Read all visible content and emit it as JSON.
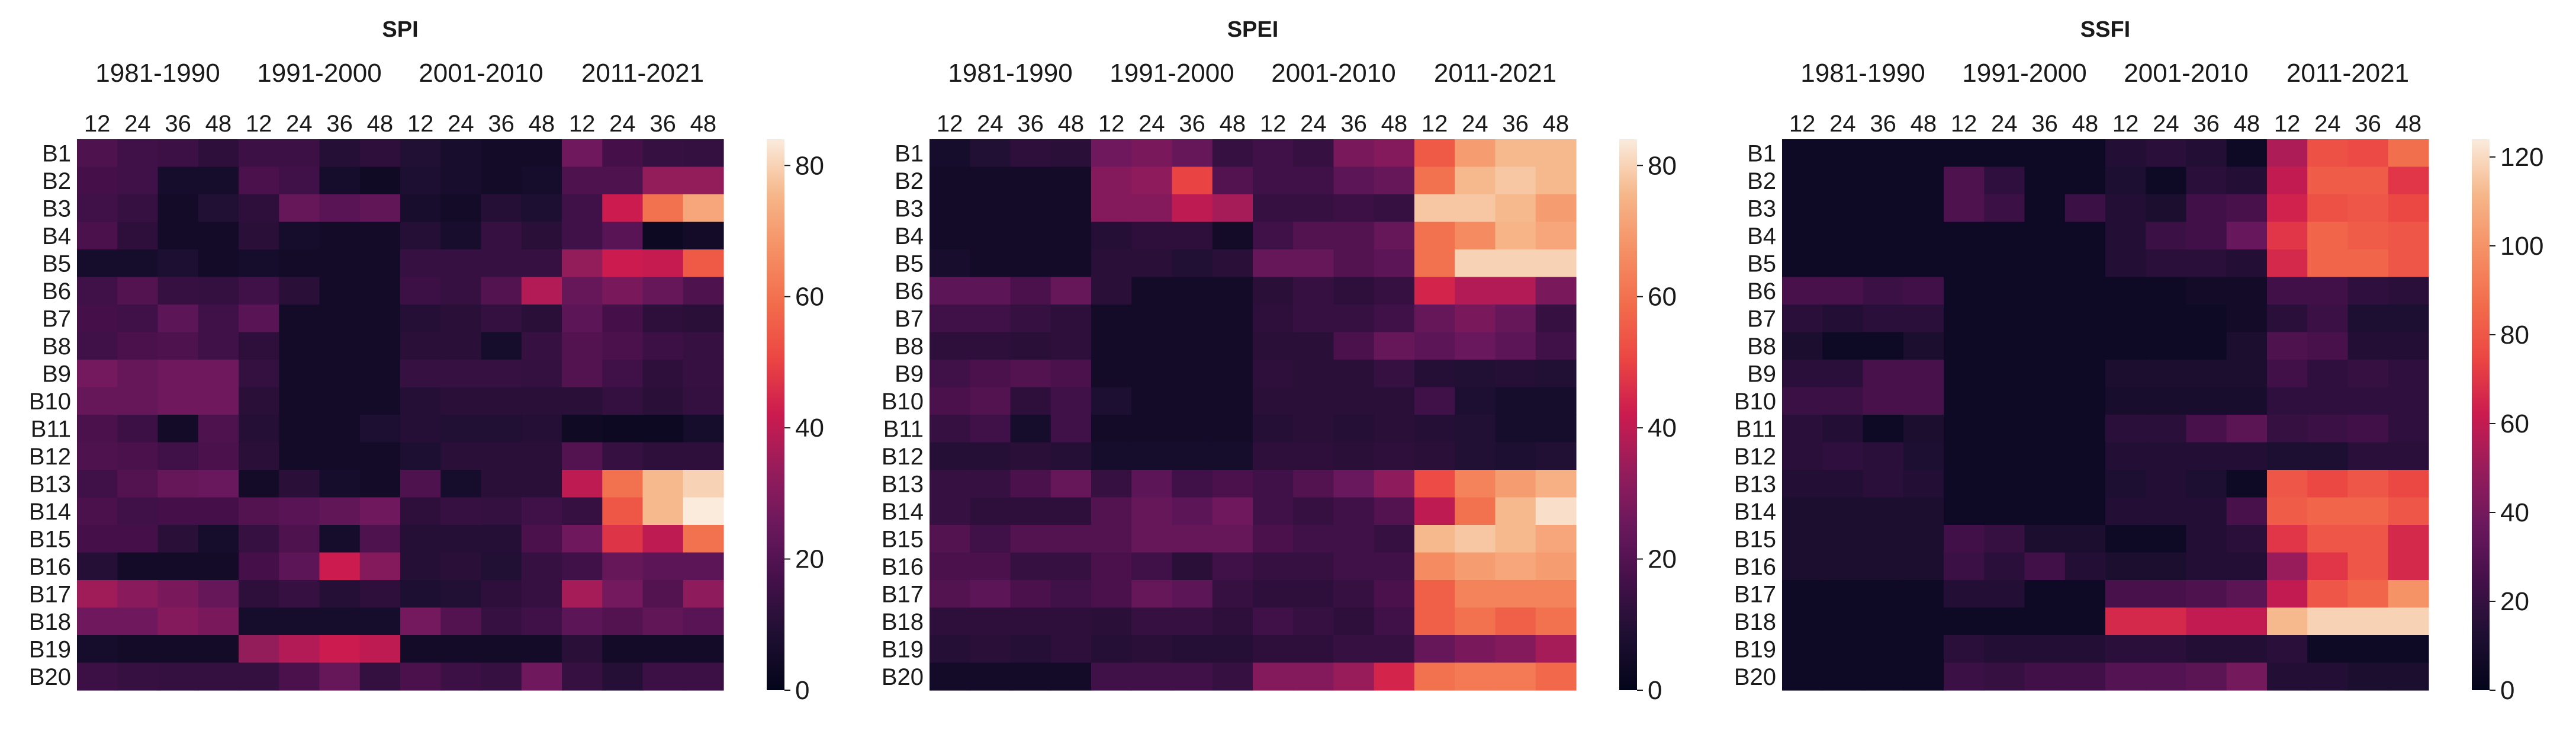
{
  "figure": {
    "background": "#ffffff"
  },
  "chart_data": [
    {
      "type": "heatmap",
      "title": "SPI",
      "periods": [
        "1981-1990",
        "1991-2000",
        "2001-2010",
        "2011-2021"
      ],
      "scales": [
        "12",
        "24",
        "36",
        "48"
      ],
      "rows": [
        "B1",
        "B2",
        "B3",
        "B4",
        "B5",
        "B6",
        "B7",
        "B8",
        "B9",
        "B10",
        "B11",
        "B12",
        "B13",
        "B14",
        "B15",
        "B16",
        "B17",
        "B18",
        "B19",
        "B20"
      ],
      "colorbar": {
        "min": 0,
        "max": 84,
        "ticks": [
          0,
          20,
          40,
          60,
          80
        ]
      },
      "values": [
        [
          19,
          16,
          15,
          12,
          15,
          15,
          10,
          12,
          9,
          7,
          5,
          5,
          26,
          17,
          14,
          13
        ],
        [
          17,
          16,
          6,
          6,
          18,
          16,
          6,
          4,
          8,
          7,
          5,
          6,
          19,
          19,
          33,
          33
        ],
        [
          16,
          14,
          5,
          9,
          12,
          24,
          21,
          23,
          7,
          5,
          10,
          8,
          16,
          42,
          60,
          72
        ],
        [
          18,
          12,
          5,
          5,
          11,
          6,
          5,
          5,
          10,
          7,
          14,
          11,
          16,
          21,
          3,
          5
        ],
        [
          6,
          6,
          8,
          5,
          6,
          5,
          5,
          5,
          14,
          14,
          14,
          14,
          33,
          42,
          41,
          55
        ],
        [
          16,
          20,
          14,
          13,
          16,
          11,
          5,
          5,
          15,
          14,
          20,
          38,
          24,
          28,
          24,
          19
        ],
        [
          17,
          16,
          22,
          16,
          21,
          5,
          5,
          5,
          10,
          11,
          13,
          11,
          22,
          17,
          12,
          11
        ],
        [
          16,
          18,
          19,
          16,
          12,
          5,
          5,
          5,
          11,
          11,
          6,
          14,
          20,
          18,
          15,
          14
        ],
        [
          27,
          24,
          26,
          26,
          13,
          5,
          5,
          5,
          14,
          14,
          14,
          13,
          20,
          16,
          12,
          14
        ],
        [
          24,
          24,
          26,
          26,
          11,
          5,
          5,
          5,
          10,
          11,
          11,
          11,
          11,
          13,
          11,
          13
        ],
        [
          18,
          15,
          5,
          19,
          10,
          5,
          5,
          8,
          10,
          9,
          9,
          10,
          4,
          3,
          3,
          6
        ],
        [
          19,
          18,
          16,
          18,
          11,
          5,
          5,
          5,
          8,
          11,
          11,
          11,
          20,
          14,
          12,
          12
        ],
        [
          16,
          20,
          24,
          25,
          5,
          11,
          6,
          5,
          19,
          6,
          11,
          11,
          40,
          60,
          76,
          80
        ],
        [
          18,
          16,
          17,
          17,
          20,
          21,
          23,
          26,
          12,
          14,
          13,
          16,
          14,
          54,
          76,
          86
        ],
        [
          17,
          17,
          11,
          6,
          14,
          19,
          6,
          19,
          10,
          10,
          10,
          18,
          26,
          47,
          40,
          60
        ],
        [
          10,
          5,
          5,
          5,
          17,
          22,
          42,
          30,
          10,
          11,
          9,
          14,
          16,
          24,
          22,
          22
        ],
        [
          35,
          31,
          28,
          24,
          12,
          14,
          10,
          12,
          8,
          9,
          12,
          14,
          36,
          27,
          20,
          32
        ],
        [
          26,
          26,
          30,
          28,
          6,
          6,
          6,
          6,
          27,
          20,
          14,
          16,
          22,
          20,
          23,
          21
        ],
        [
          6,
          5,
          5,
          5,
          33,
          38,
          42,
          40,
          5,
          5,
          5,
          5,
          11,
          5,
          5,
          5
        ],
        [
          15,
          14,
          13,
          13,
          13,
          18,
          24,
          13,
          18,
          15,
          14,
          26,
          14,
          10,
          15,
          15
        ]
      ]
    },
    {
      "type": "heatmap",
      "title": "SPEI",
      "periods": [
        "1981-1990",
        "1991-2000",
        "2001-2010",
        "2011-2021"
      ],
      "scales": [
        "12",
        "24",
        "36",
        "48"
      ],
      "rows": [
        "B1",
        "B2",
        "B3",
        "B4",
        "B5",
        "B6",
        "B7",
        "B8",
        "B9",
        "B10",
        "B11",
        "B12",
        "B13",
        "B14",
        "B15",
        "B16",
        "B17",
        "B18",
        "B19",
        "B20"
      ],
      "colorbar": {
        "min": 0,
        "max": 84,
        "ticks": [
          0,
          20,
          40,
          60,
          80
        ]
      },
      "values": [
        [
          6,
          9,
          12,
          11,
          26,
          28,
          24,
          14,
          16,
          14,
          28,
          30,
          55,
          70,
          76,
          76
        ],
        [
          5,
          5,
          5,
          5,
          30,
          32,
          50,
          20,
          16,
          16,
          22,
          24,
          60,
          76,
          78,
          76
        ],
        [
          5,
          5,
          5,
          5,
          30,
          30,
          40,
          36,
          14,
          14,
          15,
          14,
          78,
          78,
          76,
          70
        ],
        [
          5,
          5,
          5,
          5,
          10,
          12,
          12,
          5,
          16,
          20,
          20,
          24,
          60,
          66,
          75,
          72
        ],
        [
          7,
          5,
          5,
          5,
          11,
          11,
          9,
          11,
          24,
          24,
          20,
          22,
          60,
          80,
          80,
          80
        ],
        [
          22,
          22,
          18,
          24,
          11,
          5,
          5,
          5,
          11,
          14,
          12,
          14,
          44,
          38,
          38,
          28
        ],
        [
          16,
          16,
          14,
          12,
          5,
          5,
          5,
          5,
          12,
          14,
          14,
          16,
          24,
          28,
          24,
          14
        ],
        [
          12,
          12,
          11,
          12,
          5,
          5,
          5,
          5,
          11,
          11,
          18,
          24,
          22,
          25,
          22,
          16
        ],
        [
          16,
          18,
          20,
          18,
          5,
          5,
          5,
          5,
          12,
          11,
          11,
          14,
          10,
          9,
          10,
          9
        ],
        [
          18,
          20,
          12,
          16,
          8,
          5,
          5,
          5,
          11,
          11,
          11,
          11,
          16,
          8,
          6,
          6
        ],
        [
          14,
          16,
          6,
          16,
          5,
          5,
          5,
          5,
          10,
          11,
          10,
          11,
          10,
          9,
          6,
          6
        ],
        [
          10,
          10,
          11,
          10,
          6,
          6,
          6,
          6,
          12,
          12,
          11,
          12,
          11,
          9,
          8,
          9
        ],
        [
          14,
          14,
          18,
          24,
          14,
          22,
          16,
          18,
          16,
          20,
          25,
          32,
          52,
          64,
          70,
          74
        ],
        [
          14,
          12,
          12,
          12,
          20,
          24,
          22,
          26,
          16,
          14,
          16,
          20,
          40,
          60,
          76,
          82
        ],
        [
          20,
          16,
          20,
          20,
          20,
          24,
          24,
          24,
          18,
          16,
          16,
          14,
          76,
          78,
          76,
          72
        ],
        [
          18,
          18,
          14,
          14,
          18,
          16,
          11,
          16,
          14,
          14,
          16,
          16,
          66,
          70,
          72,
          70
        ],
        [
          20,
          22,
          18,
          16,
          18,
          24,
          22,
          14,
          12,
          12,
          14,
          18,
          56,
          64,
          64,
          64
        ],
        [
          12,
          12,
          12,
          12,
          11,
          14,
          14,
          12,
          16,
          14,
          12,
          16,
          56,
          60,
          56,
          60
        ],
        [
          10,
          11,
          10,
          12,
          10,
          11,
          10,
          10,
          12,
          12,
          14,
          14,
          24,
          28,
          30,
          36
        ],
        [
          5,
          5,
          5,
          5,
          16,
          16,
          16,
          14,
          30,
          30,
          34,
          44,
          60,
          62,
          62,
          58
        ]
      ]
    },
    {
      "type": "heatmap",
      "title": "SSFI",
      "periods": [
        "1981-1990",
        "1991-2000",
        "2001-2010",
        "2011-2021"
      ],
      "scales": [
        "12",
        "24",
        "36",
        "48"
      ],
      "rows": [
        "B1",
        "B2",
        "B3",
        "B4",
        "B5",
        "B6",
        "B7",
        "B8",
        "B9",
        "B10",
        "B11",
        "B12",
        "B13",
        "B14",
        "B15",
        "B16",
        "B17",
        "B18",
        "B19",
        "B20"
      ],
      "colorbar": {
        "min": 0,
        "max": 124,
        "ticks": [
          0,
          20,
          40,
          60,
          80,
          100,
          120
        ]
      },
      "values": [
        [
          5,
          5,
          5,
          5,
          5,
          5,
          5,
          5,
          14,
          16,
          14,
          5,
          55,
          78,
          76,
          88
        ],
        [
          5,
          5,
          5,
          5,
          28,
          18,
          5,
          5,
          12,
          5,
          16,
          14,
          60,
          82,
          82,
          70
        ],
        [
          5,
          5,
          5,
          5,
          28,
          22,
          5,
          22,
          14,
          11,
          24,
          26,
          64,
          78,
          80,
          75
        ],
        [
          5,
          5,
          5,
          5,
          5,
          5,
          5,
          5,
          14,
          22,
          24,
          36,
          70,
          85,
          82,
          80
        ],
        [
          5,
          5,
          5,
          5,
          5,
          5,
          5,
          5,
          14,
          16,
          16,
          14,
          66,
          85,
          85,
          80
        ],
        [
          26,
          26,
          22,
          24,
          5,
          5,
          5,
          5,
          5,
          5,
          8,
          8,
          24,
          24,
          18,
          16
        ],
        [
          16,
          14,
          16,
          16,
          5,
          5,
          5,
          5,
          5,
          5,
          5,
          8,
          16,
          22,
          12,
          12
        ],
        [
          11,
          5,
          5,
          11,
          5,
          5,
          5,
          5,
          5,
          5,
          5,
          11,
          28,
          26,
          14,
          14
        ],
        [
          16,
          16,
          26,
          26,
          5,
          5,
          5,
          5,
          11,
          11,
          11,
          11,
          24,
          18,
          20,
          18
        ],
        [
          22,
          22,
          26,
          26,
          5,
          5,
          5,
          5,
          10,
          10,
          10,
          10,
          18,
          18,
          18,
          18
        ],
        [
          16,
          14,
          5,
          11,
          5,
          5,
          5,
          5,
          16,
          16,
          26,
          32,
          20,
          22,
          24,
          18
        ],
        [
          16,
          18,
          16,
          12,
          5,
          5,
          5,
          5,
          14,
          14,
          14,
          14,
          12,
          12,
          16,
          16
        ],
        [
          14,
          14,
          16,
          14,
          5,
          5,
          5,
          5,
          12,
          14,
          12,
          5,
          80,
          75,
          80,
          75
        ],
        [
          11,
          11,
          11,
          11,
          5,
          5,
          5,
          5,
          14,
          14,
          14,
          26,
          82,
          85,
          85,
          80
        ],
        [
          11,
          11,
          11,
          11,
          24,
          20,
          11,
          11,
          5,
          5,
          14,
          16,
          70,
          80,
          80,
          66
        ],
        [
          11,
          11,
          11,
          11,
          22,
          16,
          24,
          14,
          11,
          11,
          14,
          14,
          50,
          70,
          80,
          66
        ],
        [
          5,
          5,
          5,
          5,
          14,
          14,
          5,
          5,
          26,
          26,
          28,
          32,
          60,
          80,
          85,
          100
        ],
        [
          5,
          5,
          5,
          5,
          5,
          5,
          5,
          5,
          66,
          66,
          60,
          60,
          112,
          118,
          118,
          118
        ],
        [
          5,
          5,
          5,
          5,
          16,
          14,
          14,
          14,
          16,
          16,
          14,
          14,
          16,
          5,
          5,
          5
        ],
        [
          5,
          5,
          5,
          5,
          22,
          20,
          24,
          24,
          30,
          30,
          32,
          40,
          14,
          14,
          11,
          11
        ]
      ]
    }
  ]
}
